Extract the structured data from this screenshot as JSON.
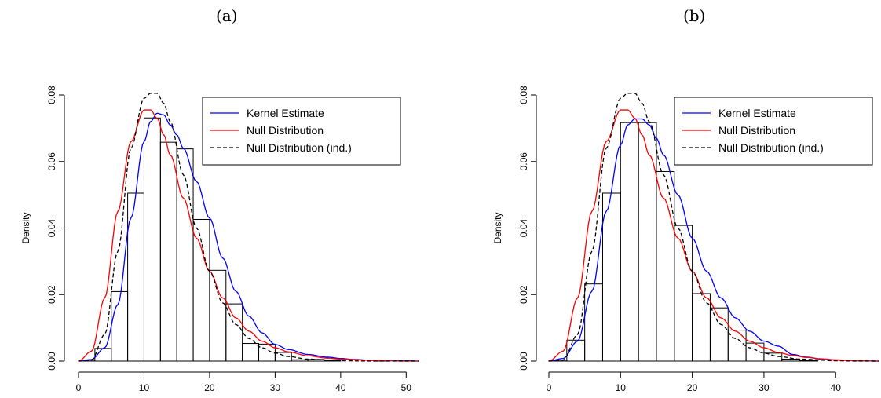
{
  "panels": [
    {
      "label": "(a)"
    },
    {
      "label": "(b)"
    }
  ],
  "chart_data": [
    {
      "type": "bar",
      "panel": "(a)",
      "title": "",
      "xlabel": "",
      "ylabel": "Density",
      "xlim": [
        0,
        52
      ],
      "ylim": [
        0,
        0.08
      ],
      "x_ticks": [
        0,
        10,
        20,
        30,
        40,
        50
      ],
      "y_ticks": [
        "0.00",
        "0.02",
        "0.04",
        "0.06",
        "0.08"
      ],
      "histogram": {
        "bin_edges": [
          0,
          2.5,
          5,
          7.5,
          10,
          12.5,
          15,
          17.5,
          20,
          22.5,
          25,
          27.5,
          30,
          32.5,
          35,
          37.5,
          40,
          42.5,
          45,
          47.5,
          50
        ],
        "density": [
          0.0003,
          0.0038,
          0.0209,
          0.0505,
          0.0731,
          0.0658,
          0.0638,
          0.0426,
          0.0273,
          0.0172,
          0.0053,
          0.0051,
          0.0026,
          0.0004,
          0.0005,
          0.0002,
          0.0,
          0.0,
          0.0002,
          0.0
        ]
      },
      "series": [
        {
          "name": "Kernel Estimate",
          "color": "#0000ff",
          "dash": "solid",
          "x": [
            0,
            2,
            4,
            6,
            8,
            10,
            11,
            12,
            13,
            14,
            15,
            16,
            18,
            20,
            22,
            24,
            26,
            28,
            30,
            32,
            35,
            38,
            40,
            42,
            45,
            50,
            52
          ],
          "y": [
            0.0,
            0.0005,
            0.004,
            0.017,
            0.043,
            0.066,
            0.072,
            0.0745,
            0.074,
            0.071,
            0.068,
            0.064,
            0.054,
            0.043,
            0.031,
            0.021,
            0.0135,
            0.0085,
            0.005,
            0.0035,
            0.002,
            0.0012,
            0.0008,
            0.0005,
            0.0002,
            0.0001,
            0.0
          ]
        },
        {
          "name": "Null Distribution",
          "color": "#ff0000",
          "dash": "solid",
          "x": [
            0,
            2,
            4,
            6,
            8,
            10,
            11,
            12,
            13,
            14,
            16,
            18,
            20,
            22,
            24,
            26,
            28,
            30,
            32,
            35,
            38,
            40,
            45,
            50,
            52
          ],
          "y": [
            0.0,
            0.003,
            0.019,
            0.045,
            0.066,
            0.0755,
            0.0755,
            0.073,
            0.068,
            0.062,
            0.049,
            0.037,
            0.027,
            0.019,
            0.013,
            0.009,
            0.006,
            0.004,
            0.0028,
            0.0016,
            0.0009,
            0.0006,
            0.0002,
            0.0,
            0.0
          ]
        },
        {
          "name": "Null Distribution (ind.)",
          "color": "#000000",
          "dash": "dashed",
          "x": [
            0,
            2,
            4,
            6,
            8,
            10,
            11,
            12,
            13,
            14,
            16,
            18,
            20,
            22,
            24,
            26,
            28,
            30,
            32,
            35,
            40,
            45,
            50,
            52
          ],
          "y": [
            0.0,
            0.0003,
            0.008,
            0.033,
            0.064,
            0.079,
            0.0805,
            0.0805,
            0.0775,
            0.072,
            0.056,
            0.04,
            0.027,
            0.0175,
            0.011,
            0.0068,
            0.004,
            0.0024,
            0.0014,
            0.0006,
            0.0001,
            0.0,
            0.0,
            0.0
          ]
        }
      ],
      "legend_position": "top-right"
    },
    {
      "type": "bar",
      "panel": "(b)",
      "title": "",
      "xlabel": "",
      "ylabel": "Density",
      "xlim": [
        0,
        46
      ],
      "ylim": [
        0,
        0.08
      ],
      "x_ticks": [
        0,
        10,
        20,
        30,
        40
      ],
      "y_ticks": [
        "0.00",
        "0.02",
        "0.04",
        "0.06",
        "0.08"
      ],
      "histogram": {
        "bin_edges": [
          0,
          2.5,
          5,
          7.5,
          10,
          12.5,
          15,
          17.5,
          20,
          22.5,
          25,
          27.5,
          30,
          32.5,
          35,
          37.5,
          40
        ],
        "density": [
          0.0003,
          0.0063,
          0.0232,
          0.0505,
          0.0717,
          0.0717,
          0.057,
          0.0408,
          0.0203,
          0.016,
          0.0093,
          0.0054,
          0.0024,
          0.0006,
          0.0002,
          0.0
        ]
      },
      "series": [
        {
          "name": "Kernel Estimate",
          "color": "#0000ff",
          "dash": "solid",
          "x": [
            0,
            2,
            4,
            6,
            8,
            10,
            11,
            12,
            13,
            14,
            15,
            16,
            18,
            20,
            22,
            24,
            26,
            28,
            30,
            32,
            34,
            36,
            38,
            40,
            43,
            46
          ],
          "y": [
            0.0,
            0.0008,
            0.006,
            0.021,
            0.045,
            0.065,
            0.071,
            0.0728,
            0.0728,
            0.071,
            0.067,
            0.062,
            0.05,
            0.037,
            0.027,
            0.019,
            0.013,
            0.009,
            0.006,
            0.0045,
            0.002,
            0.0012,
            0.0006,
            0.0003,
            0.0001,
            0.0
          ]
        },
        {
          "name": "Null Distribution",
          "color": "#ff0000",
          "dash": "solid",
          "x": [
            0,
            2,
            4,
            6,
            8,
            10,
            11,
            12,
            13,
            14,
            16,
            18,
            20,
            22,
            24,
            26,
            28,
            30,
            32,
            34,
            36,
            38,
            40,
            43,
            46
          ],
          "y": [
            0.0,
            0.003,
            0.019,
            0.045,
            0.066,
            0.0755,
            0.0755,
            0.073,
            0.068,
            0.062,
            0.049,
            0.037,
            0.027,
            0.019,
            0.013,
            0.009,
            0.006,
            0.004,
            0.0026,
            0.0017,
            0.0011,
            0.0007,
            0.0004,
            0.0001,
            0.0
          ]
        },
        {
          "name": "Null Distribution (ind.)",
          "color": "#000000",
          "dash": "dashed",
          "x": [
            0,
            2,
            4,
            6,
            8,
            10,
            11,
            12,
            13,
            14,
            16,
            18,
            20,
            22,
            24,
            26,
            28,
            30,
            32,
            35,
            40,
            43,
            46
          ],
          "y": [
            0.0,
            0.0003,
            0.008,
            0.033,
            0.064,
            0.079,
            0.0805,
            0.0805,
            0.0775,
            0.072,
            0.056,
            0.04,
            0.027,
            0.0175,
            0.011,
            0.0068,
            0.004,
            0.0024,
            0.0014,
            0.0006,
            0.0001,
            0.0,
            0.0
          ]
        }
      ],
      "legend_position": "top-right"
    }
  ]
}
